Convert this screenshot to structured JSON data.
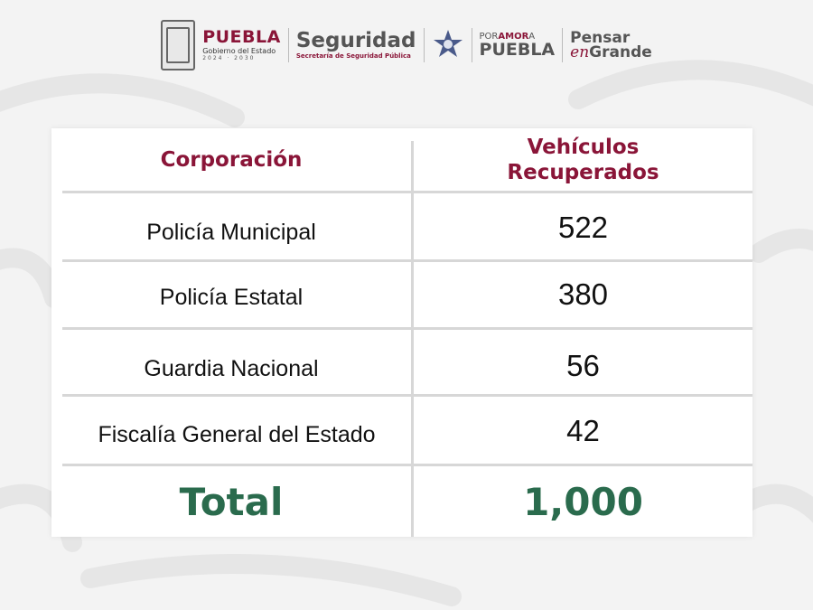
{
  "header": {
    "puebla_title": "PUEBLA",
    "puebla_subtitle": "Gobierno del Estado",
    "puebla_years": "2024 · 2030",
    "seguridad_title": "Seguridad",
    "seguridad_subtitle": "Secretaría de Seguridad Pública",
    "amor_prefix": "POR",
    "amor_word": "AMOR",
    "amor_suffix": "A",
    "amor_main": "PUEBLA",
    "pensar_top": "Pensar",
    "pensar_en": "en",
    "pensar_bottom": "Grande"
  },
  "table": {
    "col1_header": "Corporación",
    "col2_header_line1": "Vehículos",
    "col2_header_line2": "Recuperados",
    "rows": [
      {
        "corporacion": "Policía Municipal",
        "vehiculos": "522"
      },
      {
        "corporacion": "Policía Estatal",
        "vehiculos": "380"
      },
      {
        "corporacion": "Guardia Nacional",
        "vehiculos": "56"
      },
      {
        "corporacion": "Fiscalía General del Estado",
        "vehiculos": "42"
      }
    ],
    "total_label": "Total",
    "total_value": "1,000"
  },
  "colors": {
    "brand_maroon": "#8a1538",
    "total_green": "#2a6b4d",
    "background": "#f3f3f3"
  }
}
